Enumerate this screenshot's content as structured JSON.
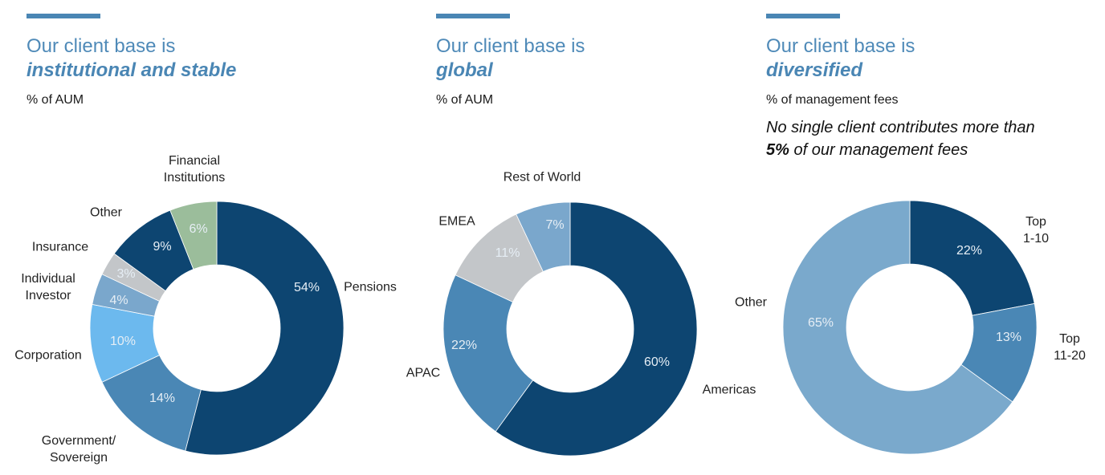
{
  "panels": [
    {
      "title_line1": "Our client base is",
      "title_line2": "institutional and stable",
      "subtitle": "% of AUM"
    },
    {
      "title_line1": "Our client base is",
      "title_line2": "global",
      "subtitle": "% of AUM"
    },
    {
      "title_line1": "Our client base is",
      "title_line2": "diversified",
      "subtitle": "% of management fees",
      "note_line1": "No single client contributes more than",
      "note_bold": "5%",
      "note_rest": " of our management fees"
    }
  ],
  "chart_data": [
    {
      "type": "pie",
      "subtitle": "% of AUM",
      "categories": [
        "Pensions",
        "Government/ Sovereign",
        "Corporation",
        "Individual Investor",
        "Insurance",
        "Other",
        "Financial Institutions"
      ],
      "values": [
        54,
        14,
        10,
        4,
        3,
        9,
        6
      ],
      "value_labels": [
        "54%",
        "14%",
        "10%",
        "4%",
        "3%",
        "9%",
        "6%"
      ],
      "colors": [
        "#0d4571",
        "#4a87b5",
        "#6cb9ee",
        "#7aa7cc",
        "#c3c6c9",
        "#0d4571",
        "#9bbd9b"
      ]
    },
    {
      "type": "pie",
      "subtitle": "% of AUM",
      "categories": [
        "Americas",
        "APAC",
        "EMEA",
        "Rest of World"
      ],
      "values": [
        60,
        22,
        11,
        7
      ],
      "value_labels": [
        "60%",
        "22%",
        "11%",
        "7%"
      ],
      "colors": [
        "#0d4571",
        "#4a87b5",
        "#c3c6c9",
        "#7aa7cc"
      ]
    },
    {
      "type": "pie",
      "subtitle": "% of management fees",
      "categories": [
        "Top 1-10",
        "Top 11-20",
        "Other"
      ],
      "values": [
        22,
        13,
        65
      ],
      "value_labels": [
        "22%",
        "13%",
        "65%"
      ],
      "colors": [
        "#0d4571",
        "#4a87b5",
        "#7aa9cc"
      ]
    }
  ]
}
